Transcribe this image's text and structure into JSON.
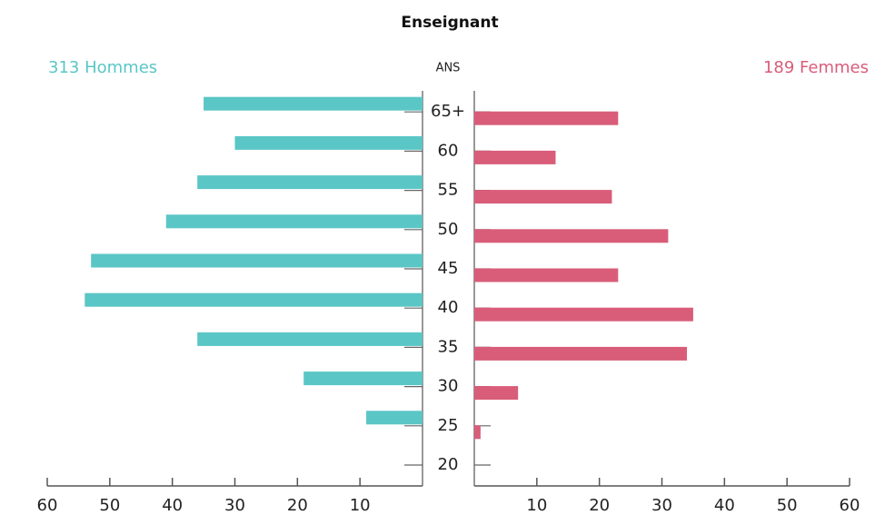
{
  "chart_data": {
    "type": "pyramid",
    "title": "Enseignant",
    "axis_label": "ANS",
    "categories": [
      "20",
      "25",
      "30",
      "35",
      "40",
      "45",
      "50",
      "55",
      "60",
      "65+"
    ],
    "series": [
      {
        "name": "313 Hommes",
        "color": "#5bc6c6",
        "values": [
          0,
          9,
          19,
          36,
          54,
          53,
          41,
          36,
          30,
          35
        ]
      },
      {
        "name": "189 Femmes",
        "color": "#d95d79",
        "values": [
          0,
          1,
          7,
          34,
          35,
          23,
          31,
          22,
          13,
          23
        ]
      }
    ],
    "xlim": [
      0,
      60
    ],
    "xticks": [
      10,
      20,
      30,
      40,
      50,
      60
    ]
  }
}
